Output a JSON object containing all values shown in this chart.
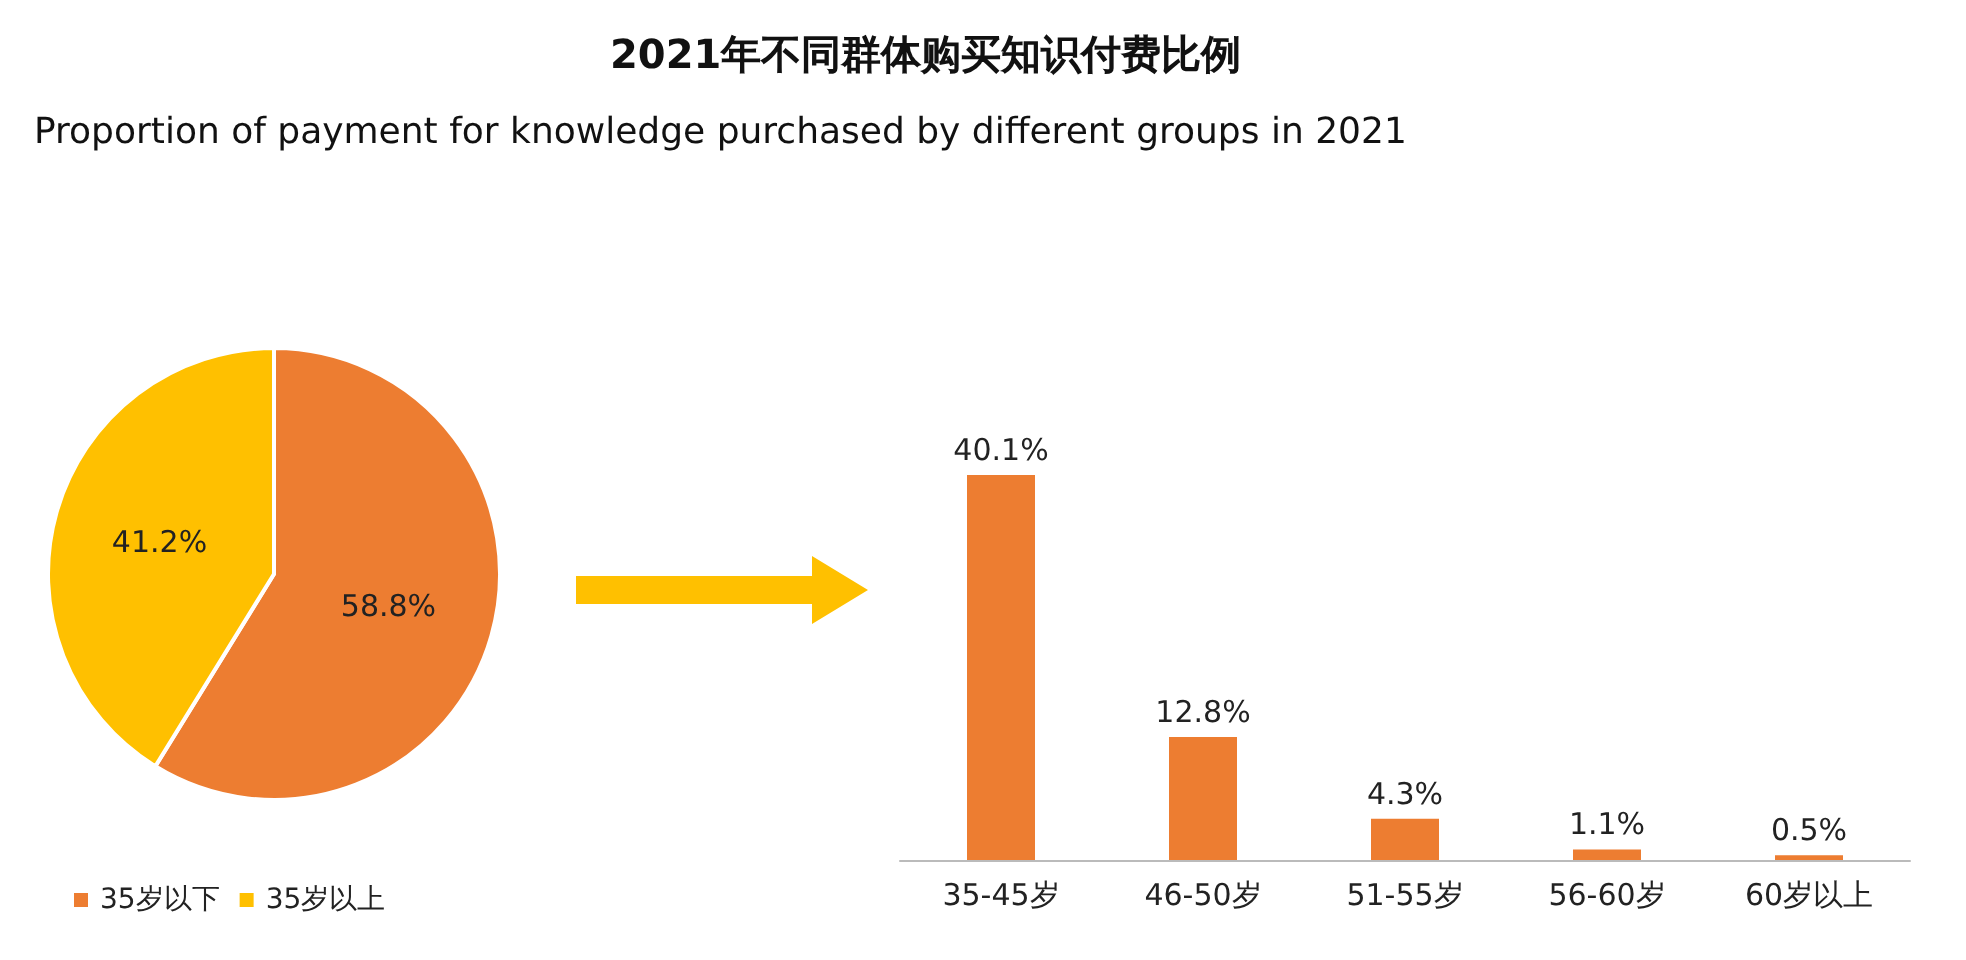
{
  "chart_data": [
    {
      "type": "pie",
      "title": "2021年不同群体购买知识付费比例",
      "subtitle": "Proportion of payment for knowledge purchased by different groups in 2021",
      "categories": [
        "35岁以下",
        "35岁以上"
      ],
      "values": [
        58.8,
        41.2
      ],
      "colors": [
        "#ed7d31",
        "#ffc000"
      ],
      "value_labels": [
        "58.8%",
        "41.2%"
      ],
      "legend": "bottom"
    },
    {
      "type": "bar",
      "categories": [
        "35-45岁",
        "46-50岁",
        "51-55岁",
        "56-60岁",
        "60岁以上"
      ],
      "values": [
        40.1,
        12.8,
        4.3,
        1.1,
        0.5
      ],
      "color": "#ed7d31",
      "value_labels": [
        "40.1%",
        "12.8%",
        "4.3%",
        "1.1%",
        "0.5%"
      ],
      "tick_labels": "x"
    }
  ]
}
